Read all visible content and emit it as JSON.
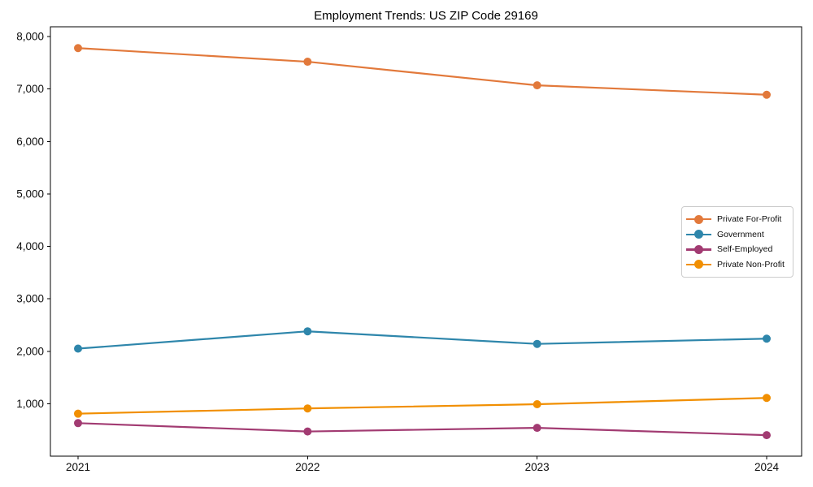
{
  "chart_data": {
    "type": "line",
    "title": "Employment Trends: US ZIP Code 29169",
    "categories": [
      "2021",
      "2022",
      "2023",
      "2024"
    ],
    "series": [
      {
        "name": "Private For-Profit",
        "color": "#E2793B",
        "values": [
          7780,
          7520,
          7070,
          6890
        ]
      },
      {
        "name": "Government",
        "color": "#2E86AB",
        "values": [
          2050,
          2380,
          2140,
          2240
        ]
      },
      {
        "name": "Self-Employed",
        "color": "#A23B72",
        "values": [
          630,
          470,
          540,
          400
        ]
      },
      {
        "name": "Private Non-Profit",
        "color": "#F18F01",
        "values": [
          810,
          910,
          990,
          1110
        ]
      }
    ],
    "xlabel": "",
    "ylabel": "",
    "ylim": [
      0,
      8186
    ],
    "yticks": [
      1000,
      2000,
      3000,
      4000,
      5000,
      6000,
      7000,
      8000
    ],
    "ytick_labels": [
      "1,000",
      "2,000",
      "3,000",
      "4,000",
      "5,000",
      "6,000",
      "7,000",
      "8,000"
    ],
    "grid": false,
    "legend_position": "center-right",
    "marker": "circle",
    "axis_color": "#000000",
    "tick_label_color": "#0d0d0d"
  }
}
